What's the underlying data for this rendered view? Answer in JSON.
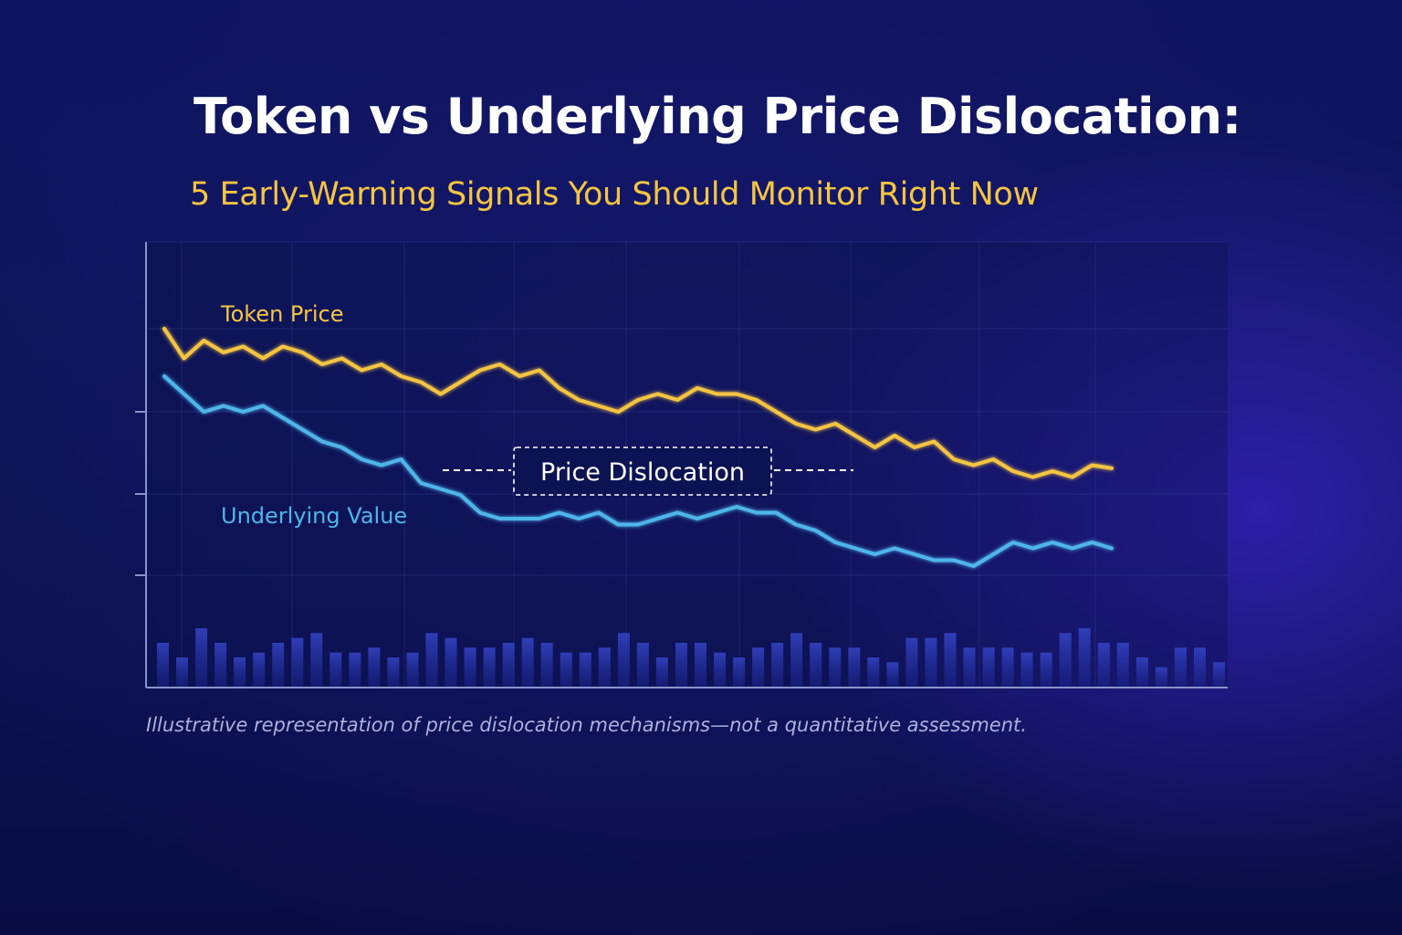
{
  "title": "Token vs Underlying Price Dislocation:",
  "subtitle": "5 Early-Warning Signals You Should Monitor Right Now",
  "caption": "Illustrative representation of price dislocation mechanisms—not a quantitative assessment.",
  "colors": {
    "token": "#f5c542",
    "underlying": "#4fb6ea",
    "volume": "#2b3bb8",
    "grid": "#3a4590",
    "axis": "#8a94cc"
  },
  "chart_data": {
    "type": "line",
    "title": "",
    "xlabel": "",
    "ylabel": "",
    "grid": true,
    "series": [
      {
        "name": "Token Price",
        "values": [
          105,
          100,
          103,
          101,
          102,
          100,
          102,
          101,
          99,
          100,
          98,
          99,
          97,
          96,
          94,
          96,
          98,
          99,
          97,
          98,
          95,
          93,
          92,
          91,
          93,
          94,
          93,
          95,
          94,
          94,
          93,
          91,
          89,
          88,
          89,
          87,
          85,
          87,
          85,
          86,
          83,
          82,
          83,
          81,
          80,
          81,
          80,
          82,
          81.5
        ]
      },
      {
        "name": "Underlying Value",
        "values": [
          97,
          94,
          91,
          92,
          91,
          92,
          90,
          88,
          86,
          85,
          83,
          82,
          83,
          79,
          78,
          77,
          74,
          73,
          73,
          73,
          74,
          73,
          74,
          72,
          72,
          73,
          74,
          73,
          74,
          75,
          74,
          74,
          72,
          71,
          69,
          68,
          67,
          68,
          67,
          66,
          66,
          65,
          67,
          69,
          68,
          69,
          68,
          69,
          68
        ]
      }
    ],
    "volume": [
      9,
      6,
      12,
      9,
      6,
      7,
      9,
      10,
      11,
      7,
      7,
      8,
      6,
      7,
      11,
      10,
      8,
      8,
      9,
      10,
      9,
      7,
      7,
      8,
      11,
      9,
      6,
      9,
      9,
      7,
      6,
      8,
      9,
      11,
      9,
      8,
      8,
      6,
      5,
      10,
      10,
      11,
      8,
      8,
      8,
      7,
      7,
      11,
      12,
      9,
      9,
      6,
      4,
      8,
      8,
      5
    ],
    "annotation": "Price Dislocation"
  }
}
